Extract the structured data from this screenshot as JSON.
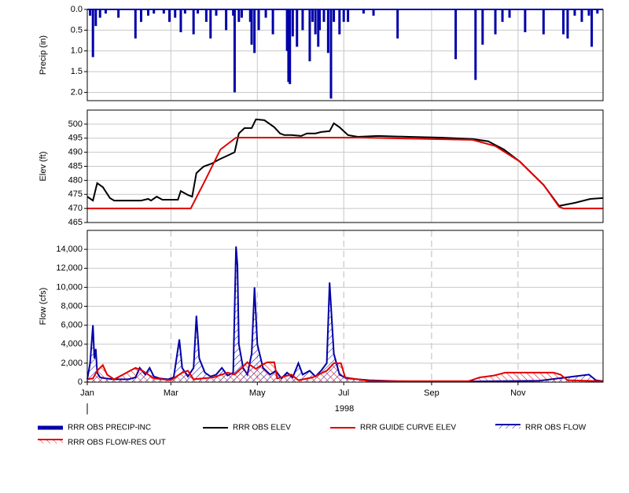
{
  "chart_data": [
    {
      "type": "bar",
      "ylabel": "Precip (in)",
      "ylim": [
        0,
        2.2
      ],
      "inverted": true,
      "yticks": [
        {
          "value": 0,
          "label": "0.0"
        },
        0.5,
        {
          "value": 1,
          "label": "1.0"
        },
        1.5,
        {
          "value": 2,
          "label": "2.0"
        }
      ],
      "grid": true,
      "series": [
        {
          "name": "RRR OBS PRECIP-INC",
          "color": "#0000a8",
          "x": [
            3,
            5,
            7,
            10,
            14,
            23,
            35,
            39,
            44,
            48,
            55,
            59,
            63,
            67,
            70,
            76,
            79,
            85,
            88,
            92,
            99,
            104,
            105,
            108,
            110,
            116,
            117,
            119,
            122,
            127,
            132,
            142,
            143,
            144,
            146,
            149,
            153,
            158,
            160,
            162,
            164,
            165,
            168,
            171,
            173,
            175,
            179,
            182,
            185,
            196,
            203,
            220,
            261,
            275,
            280,
            289,
            294,
            299,
            310,
            323,
            337,
            340,
            345,
            350,
            355,
            357,
            361
          ],
          "values": [
            0.15,
            1.15,
            0.4,
            0.2,
            0.1,
            0.2,
            0.7,
            0.3,
            0.15,
            0.1,
            0.1,
            0.3,
            0.2,
            0.55,
            0.1,
            0.6,
            0.1,
            0.3,
            0.7,
            0.15,
            0.5,
            0.15,
            2.0,
            0.3,
            0.2,
            0.3,
            0.85,
            1.05,
            0.5,
            0.2,
            0.6,
            1.0,
            1.75,
            1.8,
            0.65,
            0.9,
            0.5,
            1.25,
            0.3,
            0.6,
            0.9,
            0.5,
            0.3,
            1.05,
            2.15,
            0.3,
            0.6,
            0.3,
            0.3,
            0.1,
            0.15,
            0.7,
            1.2,
            1.7,
            0.85,
            0.6,
            0.3,
            0.2,
            0.55,
            0.6,
            0.6,
            0.7,
            0.15,
            0.3,
            0.15,
            0.9,
            0.1
          ]
        }
      ]
    },
    {
      "type": "line",
      "ylabel": "Elev (ft)",
      "ylim": [
        465,
        505
      ],
      "yticks": [
        465,
        470,
        475,
        480,
        485,
        490,
        495,
        500
      ],
      "grid": true,
      "series": [
        {
          "name": "RRR OBS ELEV",
          "color": "#000000",
          "x": [
            1,
            5,
            8,
            12,
            17,
            20,
            39,
            44,
            46,
            50,
            54,
            59,
            65,
            67,
            72,
            75,
            78,
            83,
            89,
            94,
            100,
            105,
            108,
            112,
            117,
            120,
            126,
            133,
            137,
            140,
            145,
            152,
            156,
            162,
            166,
            172,
            175,
            179,
            185,
            192,
            206,
            228,
            250,
            273,
            284,
            295,
            306,
            323,
            334,
            345,
            356,
            365
          ],
          "values": [
            474.2,
            472.8,
            479,
            477.6,
            473.7,
            472.8,
            472.8,
            473.4,
            472.8,
            474.2,
            473.1,
            473.1,
            473.1,
            476.2,
            474.8,
            474.2,
            482.6,
            484.9,
            486,
            487.4,
            488.8,
            490,
            496.7,
            498.6,
            498.6,
            501.7,
            501.4,
            498.9,
            496.7,
            496.1,
            496.1,
            495.8,
            496.7,
            496.7,
            497.2,
            497.5,
            500.3,
            498.9,
            496.1,
            495.5,
            495.8,
            495.5,
            495.2,
            494.7,
            493.9,
            491,
            486.8,
            478.4,
            470.9,
            472,
            473.4,
            473.7
          ]
        },
        {
          "name": "RRR GUIDE CURVE ELEV",
          "color": "#e00000",
          "x": [
            1,
            74,
            84,
            95,
            106,
            195,
            273,
            289,
            306,
            323,
            334,
            337,
            365
          ],
          "values": [
            470,
            470,
            479.8,
            491,
            495.2,
            495.2,
            494.4,
            492.2,
            486.8,
            478.4,
            470.6,
            470,
            470
          ]
        }
      ]
    },
    {
      "type": "area",
      "ylabel": "Flow (cfs)",
      "xlabel": "1998",
      "ylim": [
        0,
        16000
      ],
      "xlim": [
        1,
        365
      ],
      "xticks": [
        {
          "value": 1,
          "label": "Jan"
        },
        {
          "value": 60,
          "label": "Mar"
        },
        {
          "value": 121,
          "label": "May"
        },
        {
          "value": 182,
          "label": "Jul"
        },
        {
          "value": 244,
          "label": "Sep"
        },
        {
          "value": 305,
          "label": "Nov"
        }
      ],
      "yticks": [
        0,
        {
          "value": 2000,
          "label": "2,000"
        },
        {
          "value": 4000,
          "label": "4,000"
        },
        {
          "value": 6000,
          "label": "6,000"
        },
        {
          "value": 8000,
          "label": "8,000"
        },
        {
          "value": 10000,
          "label": "10,000"
        },
        {
          "value": 12000,
          "label": "12,000"
        },
        {
          "value": 14000,
          "label": "14,000"
        }
      ],
      "grid": true,
      "series": [
        {
          "name": "RRR OBS FLOW",
          "color": "#0000a8",
          "x": [
            1,
            3,
            5,
            6,
            7,
            8,
            10,
            14,
            20,
            30,
            35,
            38,
            42,
            45,
            48,
            52,
            58,
            62,
            66,
            68,
            72,
            76,
            78,
            80,
            84,
            88,
            92,
            96,
            100,
            104,
            106,
            107,
            108,
            111,
            114,
            117,
            119,
            121,
            125,
            130,
            134,
            138,
            142,
            146,
            150,
            153,
            158,
            162,
            166,
            170,
            172,
            173,
            175,
            179,
            184,
            192,
            200,
            220,
            260,
            290,
            320,
            355,
            360,
            365
          ],
          "values": [
            300,
            2000,
            6000,
            2500,
            3500,
            1000,
            500,
            400,
            300,
            300,
            500,
            1500,
            800,
            1500,
            600,
            400,
            300,
            500,
            4500,
            1500,
            600,
            1500,
            7000,
            2500,
            1000,
            600,
            800,
            1500,
            700,
            1000,
            14300,
            12300,
            4000,
            1500,
            800,
            3000,
            10000,
            4000,
            1500,
            800,
            1200,
            400,
            1000,
            500,
            2000,
            800,
            1200,
            600,
            1200,
            2000,
            10500,
            8000,
            3000,
            800,
            400,
            300,
            200,
            100,
            50,
            100,
            150,
            800,
            200,
            100
          ]
        },
        {
          "name": "RRR OBS FLOW-RES OUT",
          "color": "#e00000",
          "x": [
            1,
            5,
            8,
            12,
            15,
            20,
            35,
            40,
            48,
            60,
            68,
            72,
            76,
            90,
            100,
            105,
            110,
            114,
            116,
            120,
            124,
            128,
            133,
            135,
            145,
            150,
            160,
            170,
            175,
            180,
            183,
            200,
            270,
            278,
            288,
            296,
            330,
            335,
            340,
            365
          ],
          "values": [
            300,
            400,
            1200,
            1800,
            800,
            300,
            1500,
            1200,
            400,
            200,
            1000,
            1200,
            300,
            500,
            1000,
            800,
            1500,
            2100,
            1800,
            1400,
            1800,
            2100,
            2100,
            400,
            800,
            200,
            500,
            1200,
            2000,
            2000,
            500,
            100,
            100,
            500,
            700,
            1000,
            1000,
            800,
            200,
            100
          ]
        }
      ]
    }
  ]
}
